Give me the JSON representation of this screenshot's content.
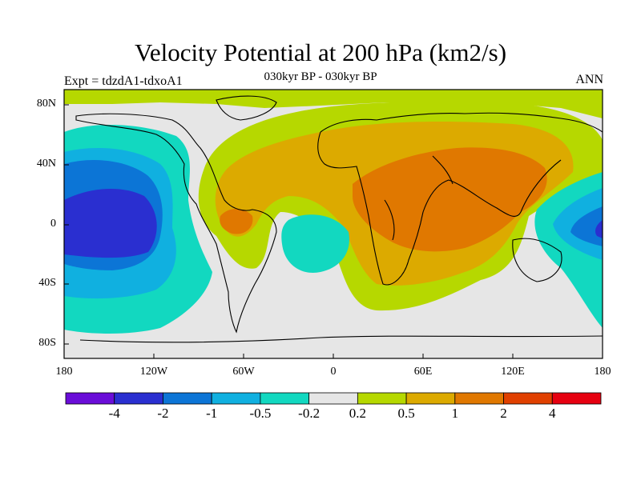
{
  "title": "Velocity Potential at 200 hPa (km2/s)",
  "subtitle_left": "Expt = tdzdA1-tdxoA1",
  "subtitle_center": "030kyr BP - 030kyr BP",
  "subtitle_right": "ANN",
  "lat_labels": [
    "80N",
    "40N",
    "0",
    "40S",
    "80S"
  ],
  "lon_labels": [
    "180",
    "120W",
    "60W",
    "0",
    "60E",
    "120E",
    "180"
  ],
  "colorbar": {
    "colors": [
      "#6a0dd8",
      "#2a2fd0",
      "#0c75d6",
      "#10b0e0",
      "#12d8c0",
      "#e6e6e6",
      "#b6d800",
      "#dcaa00",
      "#e07800",
      "#e04000",
      "#e60010"
    ],
    "labels": [
      "-4",
      "-2",
      "-1",
      "-0.5",
      "-0.2",
      "0.2",
      "0.5",
      "1",
      "2",
      "4"
    ]
  }
}
